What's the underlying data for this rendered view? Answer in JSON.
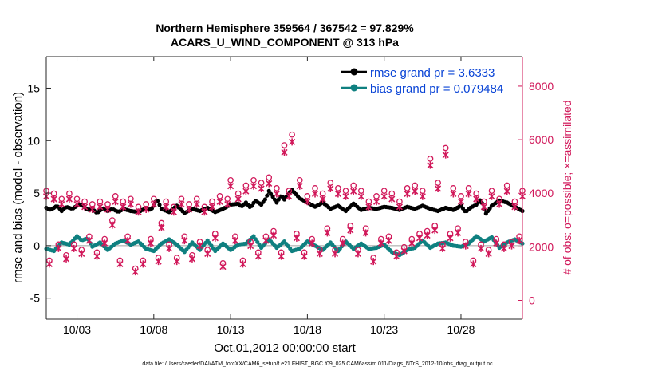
{
  "chart_data": {
    "type": "line",
    "title_line1": "Northern Hemisphere 359564 / 367542 = 97.829%",
    "title_line2": "ACARS_U_WIND_COMPONENT @ 313 hPa",
    "xlabel": "Oct.01,2012 00:00:00 start",
    "ylabel_left": "rmse and bias (model - observation)",
    "ylabel_right": "# of obs: o=possible; ×=assimilated",
    "footer": "data file: /Users/raeder/DAI/ATM_forcXX/CAM6_setup/f.e21.FHIST_BGC.f09_025.CAM6assim.011/Diags_NTrS_2012-10/obs_diag_output.nc",
    "x_range_days": [
      1.0,
      32.0
    ],
    "x_ticks": [
      {
        "day": 3,
        "label": "10/03"
      },
      {
        "day": 8,
        "label": "10/08"
      },
      {
        "day": 13,
        "label": "10/13"
      },
      {
        "day": 18,
        "label": "10/18"
      },
      {
        "day": 23,
        "label": "10/23"
      },
      {
        "day": 28,
        "label": "10/28"
      }
    ],
    "ylim_left": [
      -7,
      18
    ],
    "y_ticks_left": [
      -5,
      0,
      5,
      10,
      15
    ],
    "ylim_right": [
      -700,
      9100
    ],
    "y_ticks_right": [
      0,
      2000,
      4000,
      6000,
      8000
    ],
    "grid": false,
    "legend_position": "top-right",
    "colors": {
      "rmse": "#000000",
      "bias": "#0f8080",
      "obs": "#d1185a",
      "axis": "#262626",
      "legend_text": "#0a44d6",
      "zero_line": "#a0a0a0"
    },
    "series": [
      {
        "name": "rmse grand pr = 3.6333",
        "key": "rmse",
        "anchor_days": [
          1.0,
          1.3,
          1.7,
          2.0,
          2.3,
          2.7,
          3.0,
          3.3,
          3.7,
          4.0,
          4.3,
          4.7,
          5.0,
          5.3,
          5.7,
          6.0,
          6.5,
          7.0,
          7.5,
          7.8,
          8.0,
          8.2,
          8.5,
          9.0,
          9.5,
          10.0,
          10.5,
          11.0,
          11.5,
          12.0,
          12.5,
          13.0,
          13.5,
          13.7,
          14.0,
          14.3,
          14.6,
          15.0,
          15.3,
          15.5,
          16.0,
          16.3,
          16.5,
          16.8,
          17.0,
          17.5,
          18.0,
          18.5,
          19.0,
          19.5,
          20.0,
          20.5,
          21.0,
          21.5,
          22.0,
          22.5,
          23.0,
          23.5,
          24.0,
          24.5,
          25.0,
          25.5,
          26.0,
          26.5,
          27.0,
          27.5,
          28.0,
          28.3,
          28.6,
          29.0,
          29.3,
          29.6,
          30.0,
          30.5,
          31.0,
          31.5,
          32.0
        ],
        "anchor_values": [
          3.6,
          3.4,
          3.8,
          3.3,
          3.7,
          3.5,
          3.8,
          3.9,
          3.4,
          3.5,
          3.1,
          3.6,
          3.3,
          3.5,
          3.2,
          3.5,
          3.3,
          3.2,
          3.6,
          3.4,
          3.8,
          4.4,
          3.5,
          3.2,
          3.8,
          3.1,
          3.5,
          3.3,
          3.6,
          3.2,
          3.5,
          3.9,
          4.0,
          3.7,
          4.1,
          3.6,
          4.3,
          3.9,
          4.5,
          5.2,
          4.1,
          4.8,
          4.4,
          5.0,
          5.3,
          4.5,
          4.1,
          3.7,
          4.1,
          3.5,
          3.8,
          3.3,
          4.0,
          3.4,
          3.6,
          3.5,
          3.7,
          3.6,
          3.4,
          3.7,
          3.5,
          3.8,
          3.5,
          3.3,
          3.6,
          3.4,
          3.8,
          3.2,
          3.6,
          3.9,
          4.4,
          3.0,
          3.8,
          4.3,
          4.1,
          3.7,
          3.3
        ]
      },
      {
        "name": "bias grand pr = 0.079484",
        "key": "bias",
        "anchor_days": [
          1.0,
          1.5,
          2.0,
          2.5,
          3.0,
          3.3,
          3.7,
          4.0,
          4.5,
          5.0,
          5.5,
          6.0,
          6.5,
          7.0,
          7.5,
          8.0,
          8.5,
          9.0,
          9.5,
          10.0,
          10.5,
          11.0,
          11.5,
          12.0,
          12.5,
          13.0,
          13.5,
          14.0,
          14.5,
          15.0,
          15.5,
          16.0,
          16.5,
          17.0,
          17.5,
          18.0,
          18.5,
          19.0,
          19.5,
          20.0,
          20.5,
          21.0,
          21.5,
          22.0,
          22.5,
          23.0,
          23.5,
          24.0,
          24.5,
          25.0,
          25.5,
          26.0,
          26.5,
          27.0,
          27.5,
          28.0,
          28.5,
          29.0,
          29.5,
          30.0,
          30.5,
          31.0,
          31.5,
          32.0
        ],
        "anchor_values": [
          -0.3,
          -0.5,
          0.3,
          0.1,
          0.9,
          0.5,
          0.7,
          -0.1,
          0.3,
          -0.4,
          0.2,
          0.5,
          0.1,
          0.4,
          -0.3,
          -0.5,
          0.2,
          0.6,
          0.1,
          -0.6,
          0.3,
          -0.4,
          0.5,
          -0.5,
          0.2,
          -0.4,
          0.1,
          0.2,
          0.9,
          -0.2,
          0.6,
          -0.2,
          0.4,
          -0.5,
          -0.3,
          0.4,
          0.0,
          -0.4,
          0.3,
          -0.5,
          0.4,
          -0.3,
          0.2,
          -0.3,
          -0.2,
          0.1,
          -0.6,
          -0.9,
          -0.4,
          -0.2,
          0.5,
          -0.2,
          0.2,
          0.3,
          0.0,
          -0.1,
          0.2,
          0.9,
          0.4,
          0.8,
          -0.2,
          0.3,
          0.6,
          0.2
        ]
      },
      {
        "name": "# of obs possible",
        "key": "obs",
        "anchor_days": [
          1.0,
          1.2,
          1.5,
          1.8,
          2.0,
          2.3,
          2.5,
          2.8,
          3.0,
          3.3,
          3.5,
          3.8,
          4.0,
          4.3,
          4.5,
          4.8,
          5.0,
          5.3,
          5.5,
          5.8,
          6.0,
          6.3,
          6.5,
          6.8,
          7.0,
          7.3,
          7.5,
          7.8,
          8.0,
          8.3,
          8.5,
          8.8,
          9.0,
          9.3,
          9.5,
          9.8,
          10.0,
          10.3,
          10.5,
          10.8,
          11.0,
          11.3,
          11.5,
          11.8,
          12.0,
          12.3,
          12.5,
          12.8,
          13.0,
          13.3,
          13.5,
          13.8,
          14.0,
          14.3,
          14.5,
          14.8,
          15.0,
          15.3,
          15.5,
          15.8,
          16.0,
          16.3,
          16.5,
          16.8,
          17.0,
          17.3,
          17.5,
          17.8,
          18.0,
          18.3,
          18.5,
          18.8,
          19.0,
          19.3,
          19.5,
          19.8,
          20.0,
          20.3,
          20.5,
          20.8,
          21.0,
          21.3,
          21.5,
          21.8,
          22.0,
          22.3,
          22.5,
          22.8,
          23.0,
          23.3,
          23.5,
          23.8,
          24.0,
          24.3,
          24.5,
          24.8,
          25.0,
          25.3,
          25.5,
          25.8,
          26.0,
          26.3,
          26.5,
          26.8,
          27.0,
          27.3,
          27.5,
          27.8,
          28.0,
          28.3,
          28.5,
          28.8,
          29.0,
          29.3,
          29.5,
          29.8,
          30.0,
          30.3,
          30.5,
          30.8,
          31.0,
          31.3,
          31.5,
          31.8,
          32.0
        ],
        "anchor_values": [
          4000,
          1400,
          3900,
          2000,
          3700,
          1600,
          3900,
          2000,
          3700,
          1800,
          3600,
          2300,
          3500,
          1700,
          3600,
          2200,
          3500,
          2900,
          3800,
          1400,
          3600,
          2300,
          3700,
          1100,
          3400,
          1400,
          3500,
          2200,
          3700,
          1500,
          2800,
          3600,
          2000,
          3400,
          1500,
          3700,
          2300,
          3500,
          1600,
          3700,
          2100,
          3400,
          1800,
          3600,
          2400,
          3800,
          1300,
          3700,
          4400,
          2300,
          3900,
          1400,
          4200,
          2100,
          4400,
          1700,
          4300,
          2300,
          4500,
          2500,
          4100,
          1700,
          5700,
          4000,
          6100,
          2400,
          4400,
          1700,
          3800,
          2200,
          4100,
          1800,
          3900,
          2600,
          4300,
          1800,
          4100,
          2200,
          4000,
          2700,
          4200,
          1800,
          4000,
          2600,
          3600,
          1500,
          3800,
          2200,
          4000,
          2300,
          3900,
          1700,
          3600,
          1900,
          4100,
          2200,
          4200,
          2400,
          4000,
          2500,
          5200,
          2700,
          4300,
          2000,
          5600,
          2400,
          4100,
          2600,
          3800,
          2100,
          4100,
          1400,
          3900,
          2000,
          3600,
          1800,
          4000,
          2200,
          3700,
          2000,
          4200,
          2100,
          3600,
          2300,
          4000
        ]
      }
    ]
  }
}
